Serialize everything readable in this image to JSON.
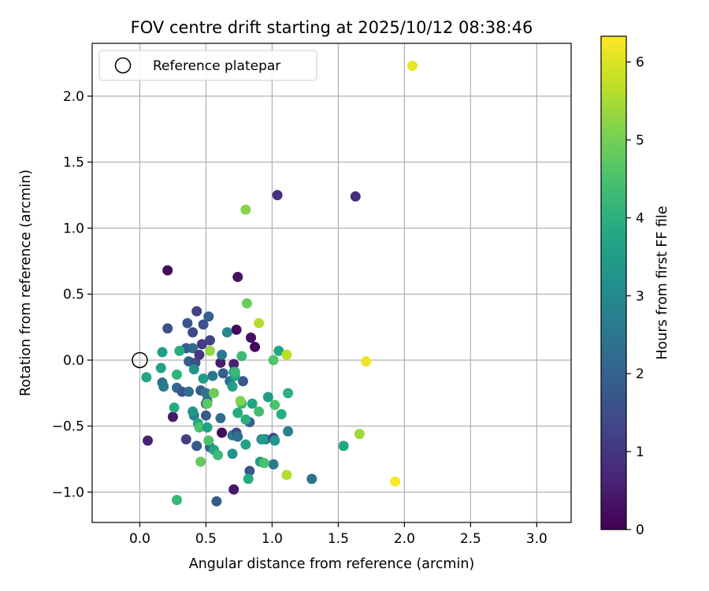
{
  "chart_data": {
    "type": "scatter",
    "title": "FOV centre drift starting at 2025/10/12 08:38:46",
    "xlabel": "Angular distance from reference (arcmin)",
    "ylabel": "Rotation from reference (arcmin)",
    "xlim": [
      -0.36,
      3.26
    ],
    "ylim": [
      -1.23,
      2.4
    ],
    "xticks": [
      0.0,
      0.5,
      1.0,
      1.5,
      2.0,
      2.5,
      3.0
    ],
    "xtick_labels": [
      "0.0",
      "0.5",
      "1.0",
      "1.5",
      "2.0",
      "2.5",
      "3.0"
    ],
    "yticks": [
      -1.0,
      -0.5,
      0.0,
      0.5,
      1.0,
      1.5,
      2.0
    ],
    "ytick_labels": [
      "−1.0",
      "−0.5",
      "0.0",
      "0.5",
      "1.0",
      "1.5",
      "2.0"
    ],
    "grid": true,
    "legend": {
      "position": "top-left",
      "entries": [
        {
          "label": "Reference platepar",
          "marker": "open-circle",
          "x": 0.0,
          "y": 0.0
        }
      ]
    },
    "colorbar": {
      "label": "Hours from first FF file",
      "colormap": "viridis",
      "range": [
        0,
        6.33
      ],
      "ticks": [
        0,
        1,
        2,
        3,
        4,
        5,
        6
      ],
      "tick_labels": [
        "0",
        "1",
        "2",
        "3",
        "4",
        "5",
        "6"
      ]
    },
    "series": [
      {
        "name": "FOV centre drift",
        "points": [
          [
            0.21,
            0.68,
            0.1
          ],
          [
            0.74,
            0.63,
            0.3
          ],
          [
            0.73,
            0.23,
            0.2
          ],
          [
            0.84,
            0.17,
            0.25
          ],
          [
            0.87,
            0.1,
            0.15
          ],
          [
            0.61,
            -0.02,
            0.5
          ],
          [
            0.71,
            -0.03,
            0.6
          ],
          [
            0.25,
            -0.43,
            0.4
          ],
          [
            0.06,
            -0.61,
            0.6
          ],
          [
            0.62,
            -0.55,
            0.2
          ],
          [
            0.71,
            -0.98,
            0.4
          ],
          [
            1.04,
            1.25,
            0.9
          ],
          [
            1.63,
            1.24,
            0.8
          ],
          [
            0.43,
            0.37,
            1.2
          ],
          [
            0.21,
            0.24,
            1.5
          ],
          [
            0.36,
            0.28,
            1.7
          ],
          [
            0.48,
            0.27,
            1.6
          ],
          [
            0.52,
            0.33,
            1.9
          ],
          [
            0.4,
            0.21,
            1.4
          ],
          [
            0.47,
            0.12,
            1.1
          ],
          [
            0.53,
            0.15,
            1.3
          ],
          [
            0.35,
            0.09,
            1.8
          ],
          [
            0.4,
            0.09,
            2.2
          ],
          [
            0.45,
            0.04,
            1.0
          ],
          [
            0.62,
            0.04,
            2.6
          ],
          [
            0.66,
            0.21,
            2.9
          ],
          [
            0.37,
            -0.01,
            2.0
          ],
          [
            0.42,
            -0.02,
            1.5
          ],
          [
            0.55,
            -0.12,
            2.5
          ],
          [
            0.63,
            -0.1,
            1.9
          ],
          [
            0.68,
            -0.16,
            2.4
          ],
          [
            0.71,
            -0.09,
            3.1
          ],
          [
            0.78,
            -0.16,
            1.7
          ],
          [
            0.17,
            -0.17,
            2.3
          ],
          [
            0.18,
            -0.2,
            2.6
          ],
          [
            0.28,
            -0.21,
            2.1
          ],
          [
            0.32,
            -0.24,
            1.6
          ],
          [
            0.37,
            -0.24,
            2.3
          ],
          [
            0.46,
            -0.23,
            1.8
          ],
          [
            0.5,
            -0.25,
            2.5
          ],
          [
            0.5,
            -0.33,
            1.5
          ],
          [
            0.51,
            -0.31,
            2.2
          ],
          [
            0.41,
            -0.42,
            2.7
          ],
          [
            0.5,
            -0.42,
            1.8
          ],
          [
            0.61,
            -0.44,
            2.3
          ],
          [
            0.53,
            -0.66,
            2.0
          ],
          [
            0.43,
            -0.65,
            1.7
          ],
          [
            0.35,
            -0.6,
            1.2
          ],
          [
            0.83,
            -0.47,
            2.0
          ],
          [
            0.7,
            -0.57,
            2.7
          ],
          [
            0.73,
            -0.55,
            1.5
          ],
          [
            0.74,
            -0.58,
            2.3
          ],
          [
            0.92,
            -0.6,
            2.6
          ],
          [
            0.95,
            -0.6,
            2.4
          ],
          [
            1.01,
            -0.59,
            1.3
          ],
          [
            1.02,
            -0.61,
            3.3
          ],
          [
            1.12,
            -0.54,
            2.7
          ],
          [
            1.01,
            -0.79,
            2.6
          ],
          [
            0.83,
            -0.84,
            1.7
          ],
          [
            0.58,
            -1.07,
            1.8
          ],
          [
            1.3,
            -0.9,
            2.4
          ],
          [
            0.05,
            -0.13,
            3.8
          ],
          [
            0.16,
            -0.06,
            3.6
          ],
          [
            0.17,
            0.06,
            3.5
          ],
          [
            0.3,
            0.07,
            3.9
          ],
          [
            0.28,
            -0.11,
            4.1
          ],
          [
            0.41,
            -0.07,
            3.2
          ],
          [
            0.48,
            -0.14,
            3.4
          ],
          [
            0.26,
            -0.36,
            3.9
          ],
          [
            0.4,
            -0.39,
            3.3
          ],
          [
            0.44,
            -0.48,
            3.8
          ],
          [
            0.45,
            -0.51,
            4.5
          ],
          [
            0.51,
            -0.51,
            3.6
          ],
          [
            0.52,
            -0.61,
            4.5
          ],
          [
            0.56,
            -0.68,
            3.7
          ],
          [
            0.59,
            -0.72,
            4.3
          ],
          [
            0.7,
            -0.71,
            3.2
          ],
          [
            0.7,
            -0.2,
            3.6
          ],
          [
            0.72,
            -0.12,
            3.8
          ],
          [
            0.72,
            -0.09,
            4.2
          ],
          [
            0.74,
            -0.4,
            3.9
          ],
          [
            0.77,
            -0.33,
            4.1
          ],
          [
            0.77,
            0.03,
            4.3
          ],
          [
            0.8,
            -0.45,
            4.0
          ],
          [
            0.8,
            -0.64,
            3.6
          ],
          [
            0.85,
            -0.33,
            3.7
          ],
          [
            0.9,
            -0.39,
            4.4
          ],
          [
            0.93,
            -0.6,
            3.5
          ],
          [
            0.97,
            -0.28,
            3.4
          ],
          [
            1.01,
            0.0,
            4.6
          ],
          [
            1.02,
            -0.34,
            4.5
          ],
          [
            1.05,
            0.07,
            3.8
          ],
          [
            1.07,
            -0.41,
            3.9
          ],
          [
            1.12,
            -0.25,
            4.0
          ],
          [
            0.91,
            -0.77,
            3.5
          ],
          [
            0.94,
            -0.78,
            4.5
          ],
          [
            0.82,
            -0.9,
            3.9
          ],
          [
            1.54,
            -0.65,
            3.8
          ],
          [
            0.28,
            -1.06,
            4.2
          ],
          [
            0.46,
            -0.77,
            4.8
          ],
          [
            0.56,
            -0.25,
            4.9
          ],
          [
            0.81,
            0.43,
            4.9
          ],
          [
            0.53,
            0.07,
            5.3
          ],
          [
            0.76,
            -0.31,
            5.1
          ],
          [
            0.51,
            -0.33,
            4.7
          ],
          [
            0.8,
            1.14,
            5.2
          ],
          [
            0.9,
            0.28,
            5.6
          ],
          [
            1.11,
            0.04,
            5.7
          ],
          [
            1.11,
            -0.87,
            5.6
          ],
          [
            1.66,
            -0.56,
            5.4
          ],
          [
            2.06,
            2.23,
            6.1
          ],
          [
            1.71,
            -0.01,
            6.2
          ],
          [
            1.93,
            -0.92,
            6.3
          ]
        ]
      }
    ]
  }
}
